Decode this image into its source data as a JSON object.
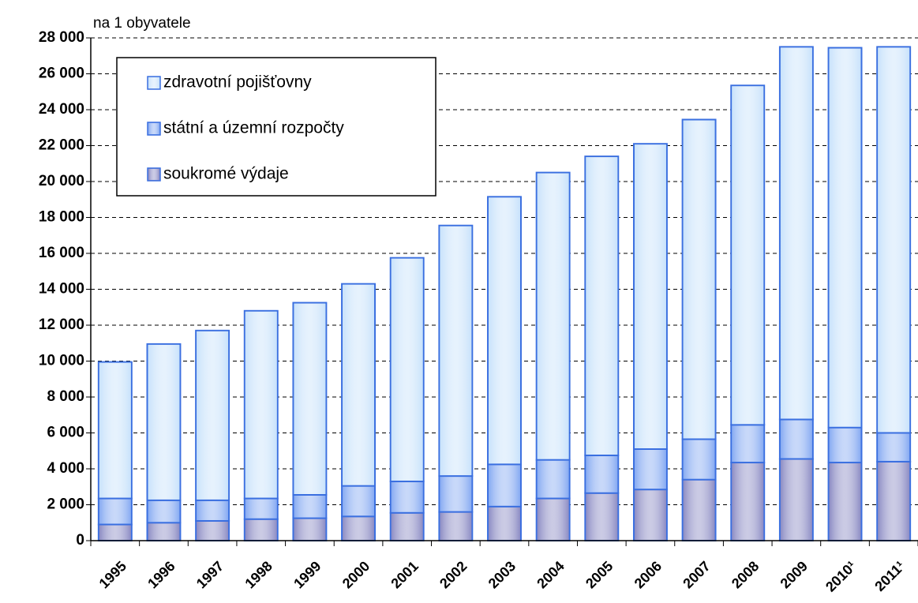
{
  "chart_data": {
    "type": "stacked_bar",
    "y_label": "na 1 obyvatele",
    "categories": [
      "1995",
      "1996",
      "1997",
      "1998",
      "1999",
      "2000",
      "2001",
      "2002",
      "2003",
      "2004",
      "2005",
      "2006",
      "2007",
      "2008",
      "2009",
      "2010¹",
      "2011¹"
    ],
    "series": [
      {
        "name": "soukromé výdaje",
        "color": "#8c8cc4",
        "values": [
          900,
          1000,
          1100,
          1200,
          1250,
          1350,
          1550,
          1600,
          1900,
          2350,
          2650,
          2850,
          3400,
          4350,
          4550,
          4350,
          4400
        ]
      },
      {
        "name": "státní a územní rozpočty",
        "color": "#86aaf2",
        "values": [
          1450,
          1250,
          1150,
          1150,
          1300,
          1700,
          1750,
          2000,
          2350,
          2150,
          2100,
          2250,
          2250,
          2100,
          2200,
          1950,
          1600
        ]
      },
      {
        "name": "zdravotní pojišťovny",
        "color": "#c8e2fb",
        "values": [
          7600,
          8700,
          9450,
          10450,
          10700,
          11250,
          12450,
          13950,
          14900,
          16000,
          16650,
          17000,
          17800,
          18900,
          20750,
          21150,
          21500
        ]
      }
    ],
    "ylim": [
      0,
      28000
    ],
    "yticks": [
      0,
      {
        "value": 2000,
        "label": "2 000"
      },
      {
        "value": 4000,
        "label": "4 000"
      },
      {
        "value": 6000,
        "label": "6 000"
      },
      {
        "value": 8000,
        "label": "8 000"
      },
      {
        "value": 10000,
        "label": "10 000"
      },
      {
        "value": 12000,
        "label": "12 000"
      },
      {
        "value": 14000,
        "label": "14 000"
      },
      {
        "value": 16000,
        "label": "16 000"
      },
      {
        "value": 18000,
        "label": "18 000"
      },
      {
        "value": 20000,
        "label": "20 000"
      },
      {
        "value": 22000,
        "label": "22 000"
      },
      {
        "value": 24000,
        "label": "24 000"
      },
      {
        "value": 26000,
        "label": "26 000"
      },
      {
        "value": 28000,
        "label": "28 000"
      }
    ],
    "grid": true,
    "legend": "upper left"
  }
}
